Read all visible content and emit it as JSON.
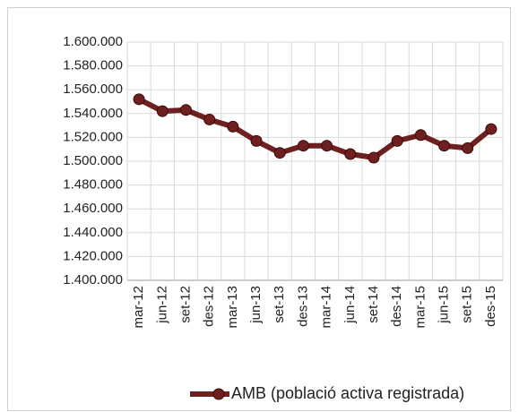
{
  "chart_data": {
    "type": "line",
    "categories": [
      "mar-12",
      "jun-12",
      "set-12",
      "des-12",
      "mar-13",
      "jun-13",
      "set-13",
      "des-13",
      "mar-14",
      "jun-14",
      "set-14",
      "des-14",
      "mar-15",
      "jun-15",
      "set-15",
      "des-15"
    ],
    "series": [
      {
        "name": "AMB (població activa registrada)",
        "color": "#6e1f1f",
        "values": [
          1552000,
          1542000,
          1543000,
          1535000,
          1529000,
          1517000,
          1507000,
          1513000,
          1513000,
          1506000,
          1503000,
          1517000,
          1522000,
          1513000,
          1511000,
          1527000
        ]
      }
    ],
    "ylim": [
      1400000,
      1600000
    ],
    "yticks": [
      {
        "value": 1400000,
        "label": "1.400.000"
      },
      {
        "value": 1420000,
        "label": "1.420.000"
      },
      {
        "value": 1440000,
        "label": "1.440.000"
      },
      {
        "value": 1460000,
        "label": "1.460.000"
      },
      {
        "value": 1480000,
        "label": "1.480.000"
      },
      {
        "value": 1500000,
        "label": "1.500.000"
      },
      {
        "value": 1520000,
        "label": "1.520.000"
      },
      {
        "value": 1540000,
        "label": "1.540.000"
      },
      {
        "value": 1560000,
        "label": "1.560.000"
      },
      {
        "value": 1580000,
        "label": "1.580.000"
      },
      {
        "value": 1600000,
        "label": "1.600.000"
      }
    ],
    "grid": true,
    "legend": "bottom"
  }
}
